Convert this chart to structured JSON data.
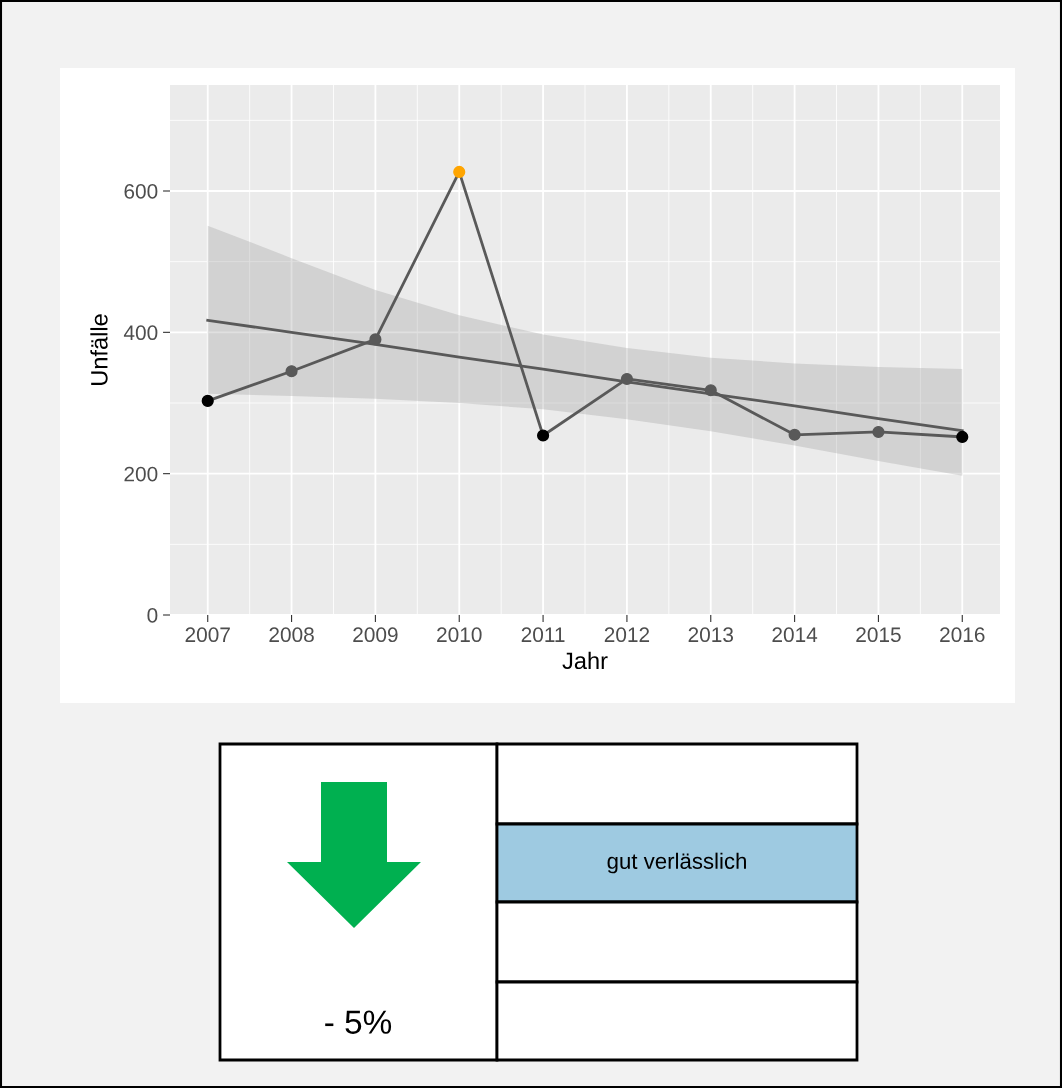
{
  "chart_data": [
    {
      "type": "line",
      "xlabel": "Jahr",
      "ylabel": "Unfälle",
      "xlim": [
        2006.55,
        2016.45
      ],
      "ylim": [
        0,
        750
      ],
      "xticks": [
        2007,
        2008,
        2009,
        2010,
        2011,
        2012,
        2013,
        2014,
        2015,
        2016
      ],
      "yticks": [
        0,
        200,
        400,
        600
      ],
      "grid": true,
      "marker": "circle",
      "line_style": "solid",
      "series": [
        {
          "type": "line",
          "color": "#595959",
          "x": [
            2007,
            2008,
            2009,
            2010,
            2011,
            2012,
            2013,
            2014,
            2015,
            2016
          ],
          "values": [
            303,
            345,
            390,
            627,
            254,
            334,
            318,
            255,
            259,
            252
          ],
          "colors": [
            "#000000",
            "#595959",
            "#595959",
            "#ffa500",
            "#000000",
            "#595959",
            "#595959",
            "#595959",
            "#595959",
            "#000000"
          ]
        },
        {
          "type": "line",
          "color": "#595959",
          "marker": "none",
          "x": [
            2007,
            2008,
            2009,
            2010,
            2011,
            2012,
            2013,
            2014,
            2015,
            2016
          ],
          "values": [
            417,
            400,
            383,
            365,
            348,
            330,
            313,
            296,
            278,
            261
          ],
          "lower": [
            313,
            310,
            306,
            300,
            291,
            277,
            260,
            240,
            218,
            197
          ],
          "upper": [
            551,
            505,
            460,
            424,
            397,
            378,
            364,
            356,
            351,
            348
          ]
        }
      ]
    },
    {
      "type": "other",
      "color": "#9ecae1",
      "annotations": [
        "- 5%",
        "gut verlässlich"
      ]
    }
  ]
}
